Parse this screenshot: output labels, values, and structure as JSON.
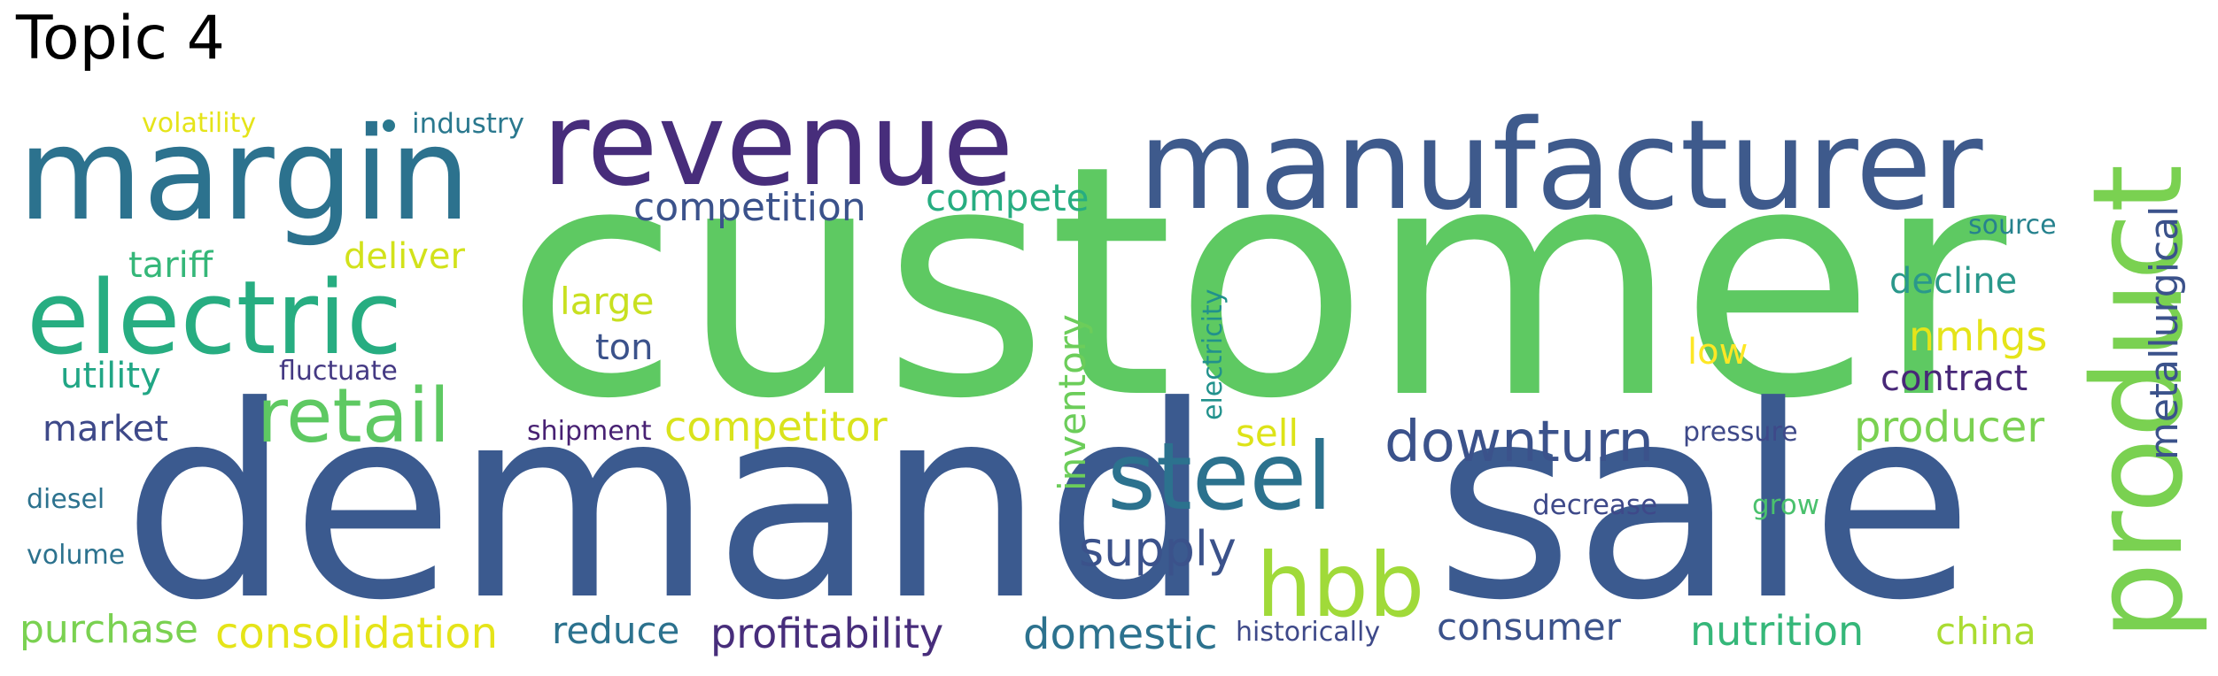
{
  "title": "Topic 4",
  "palette": {
    "dark_purple": "#472d7b",
    "blue": "#3b528b",
    "teal_blue": "#2c728e",
    "teal": "#21908c",
    "green": "#27ad81",
    "light_green": "#5dc863",
    "lime": "#aadc32",
    "yellow": "#fde725"
  },
  "words": [
    {
      "text": "customer",
      "color": "#5ec962"
    },
    {
      "text": "demand",
      "color": "#3b5a8f"
    },
    {
      "text": "sale",
      "color": "#3b5a8f"
    },
    {
      "text": "manufacturer",
      "color": "#3e5a8c"
    },
    {
      "text": "margin",
      "color": "#2c728e"
    },
    {
      "text": "revenue",
      "color": "#472d7b"
    },
    {
      "text": "product",
      "color": "#7ad151"
    },
    {
      "text": "electric",
      "color": "#27ad81"
    },
    {
      "text": "retail",
      "color": "#5ec962"
    },
    {
      "text": "steel",
      "color": "#2c728e"
    },
    {
      "text": "hbb",
      "color": "#a0da39"
    },
    {
      "text": "downturn",
      "color": "#3b528b"
    },
    {
      "text": "competition",
      "color": "#3b528b"
    },
    {
      "text": "compete",
      "color": "#27ad81"
    },
    {
      "text": "competitor",
      "color": "#d9e31c"
    },
    {
      "text": "supply",
      "color": "#3b528b"
    },
    {
      "text": "profitability",
      "color": "#472d7b"
    },
    {
      "text": "domestic",
      "color": "#2c728e"
    },
    {
      "text": "consolidation",
      "color": "#e5e419"
    },
    {
      "text": "purchase",
      "color": "#7ad151"
    },
    {
      "text": "reduce",
      "color": "#2c728e"
    },
    {
      "text": "consumer",
      "color": "#3b528b"
    },
    {
      "text": "nutrition",
      "color": "#35b779"
    },
    {
      "text": "china",
      "color": "#aadc32"
    },
    {
      "text": "producer",
      "color": "#7ad151"
    },
    {
      "text": "metallurgical",
      "color": "#3b528b"
    },
    {
      "text": "inventory",
      "color": "#6ccd5a"
    },
    {
      "text": "market",
      "color": "#3e4989"
    },
    {
      "text": "utility",
      "color": "#21a685"
    },
    {
      "text": "tariff",
      "color": "#35b779"
    },
    {
      "text": "deliver",
      "color": "#d2e21b"
    },
    {
      "text": "large",
      "color": "#c8e020"
    },
    {
      "text": "ton",
      "color": "#3b528b"
    },
    {
      "text": "sell",
      "color": "#dde318"
    },
    {
      "text": "nmhgs",
      "color": "#e5e419"
    },
    {
      "text": "low",
      "color": "#fde725"
    },
    {
      "text": "contract",
      "color": "#482878"
    },
    {
      "text": "decline",
      "color": "#2a988b"
    },
    {
      "text": "source",
      "color": "#26828e"
    },
    {
      "text": "volatility",
      "color": "#e5e419"
    },
    {
      "text": "industry",
      "color": "#2a788e"
    },
    {
      "text": "fluctuate",
      "color": "#443983"
    },
    {
      "text": "shipment",
      "color": "#482173"
    },
    {
      "text": "electricity",
      "color": "#21918c"
    },
    {
      "text": "pressure",
      "color": "#3e4989"
    },
    {
      "text": "decrease",
      "color": "#3e4989"
    },
    {
      "text": "grow",
      "color": "#4ac16d"
    },
    {
      "text": "historically",
      "color": "#3e4989"
    },
    {
      "text": "diesel",
      "color": "#2c728e"
    },
    {
      "text": "volume",
      "color": "#2c728e"
    }
  ]
}
